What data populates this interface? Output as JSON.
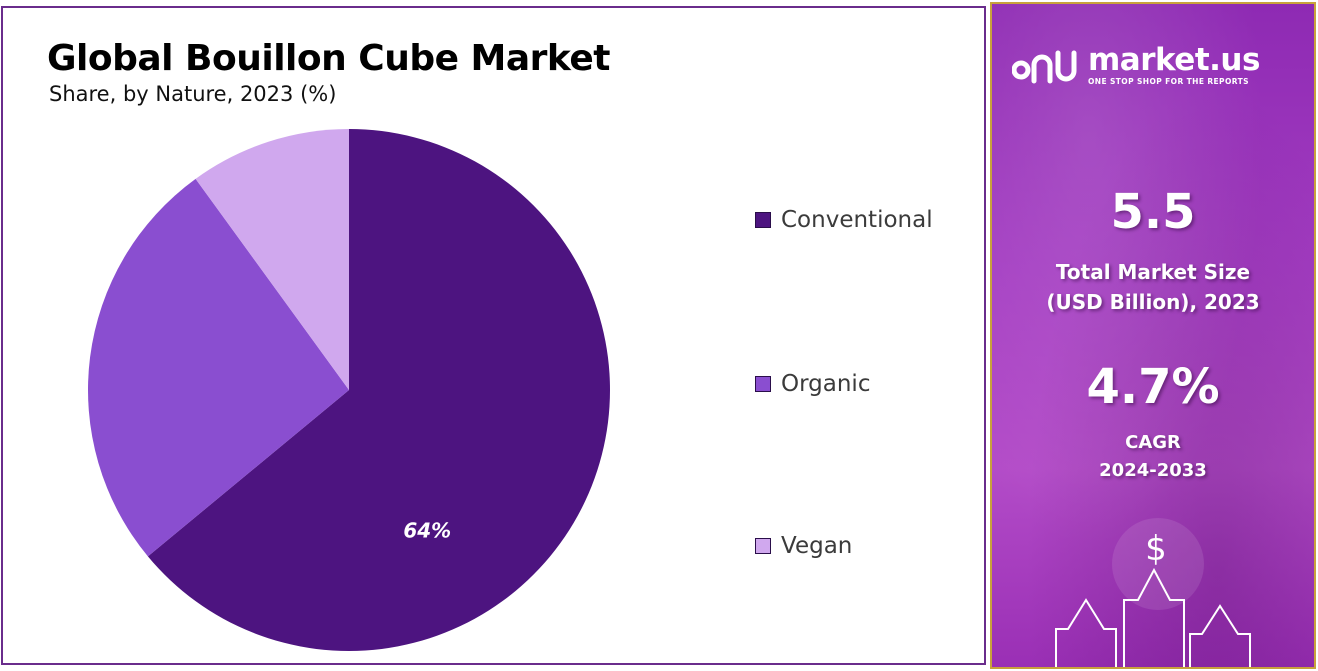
{
  "chart_data": {
    "type": "pie",
    "title": "Global Bouillon Cube Market",
    "subtitle": "Share, by Nature, 2023 (%)",
    "categories": [
      "Conventional",
      "Organic",
      "Vegan"
    ],
    "values": [
      64,
      26,
      10
    ],
    "data_labels": [
      "64%",
      "",
      ""
    ],
    "colors": [
      "#4d1480",
      "#8a4ed0",
      "#d0a8ee"
    ],
    "legend_position": "right"
  },
  "sidebar": {
    "brand_name": "market.us",
    "brand_tagline": "ONE STOP SHOP FOR THE REPORTS",
    "market_size_value": "5.5",
    "market_size_label_line1": "Total Market Size",
    "market_size_label_line2": "(USD Billion), 2023",
    "cagr_value": "4.7%",
    "cagr_label_line1": "CAGR",
    "cagr_label_line2": "2024-2033",
    "dollar_symbol": "$",
    "icons": [
      "market-us-logo-icon",
      "dollar-icon",
      "up-arrow-icon"
    ]
  }
}
